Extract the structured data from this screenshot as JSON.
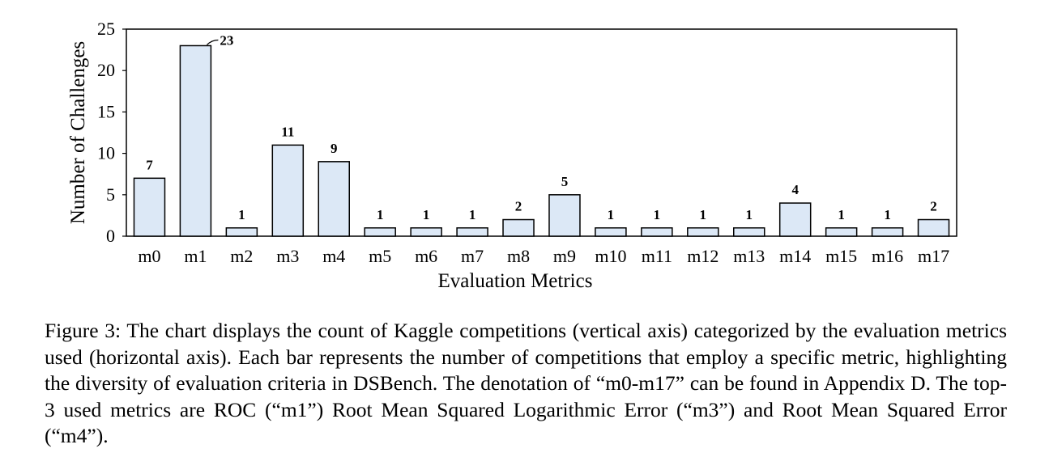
{
  "chart_data": {
    "type": "bar",
    "categories": [
      "m0",
      "m1",
      "m2",
      "m3",
      "m4",
      "m5",
      "m6",
      "m7",
      "m8",
      "m9",
      "m10",
      "m11",
      "m12",
      "m13",
      "m14",
      "m15",
      "m16",
      "m17"
    ],
    "values": [
      7,
      23,
      1,
      11,
      9,
      1,
      1,
      1,
      2,
      5,
      1,
      1,
      1,
      1,
      4,
      1,
      1,
      2
    ],
    "title": "",
    "xlabel": "Evaluation Metrics",
    "ylabel": "Number of Challenges",
    "ylim": [
      0,
      25
    ],
    "yticks": [
      0,
      5,
      10,
      15,
      20,
      25
    ],
    "grid": false,
    "bar_color": "#dce8f6",
    "bar_edge_color": "#000000"
  },
  "caption": "Figure 3: The chart displays the count of Kaggle competitions (vertical axis) categorized by the evaluation metrics used (horizontal axis). Each bar represents the number of competitions that employ a specific metric, highlighting the diversity of evaluation criteria in DSBench. The denotation of “m0-m17” can be found in Appendix D. The top-3 used metrics are ROC (“m1”) Root Mean Squared Logarithmic Error (“m3”) and Root Mean Squared Error (“m4”)."
}
